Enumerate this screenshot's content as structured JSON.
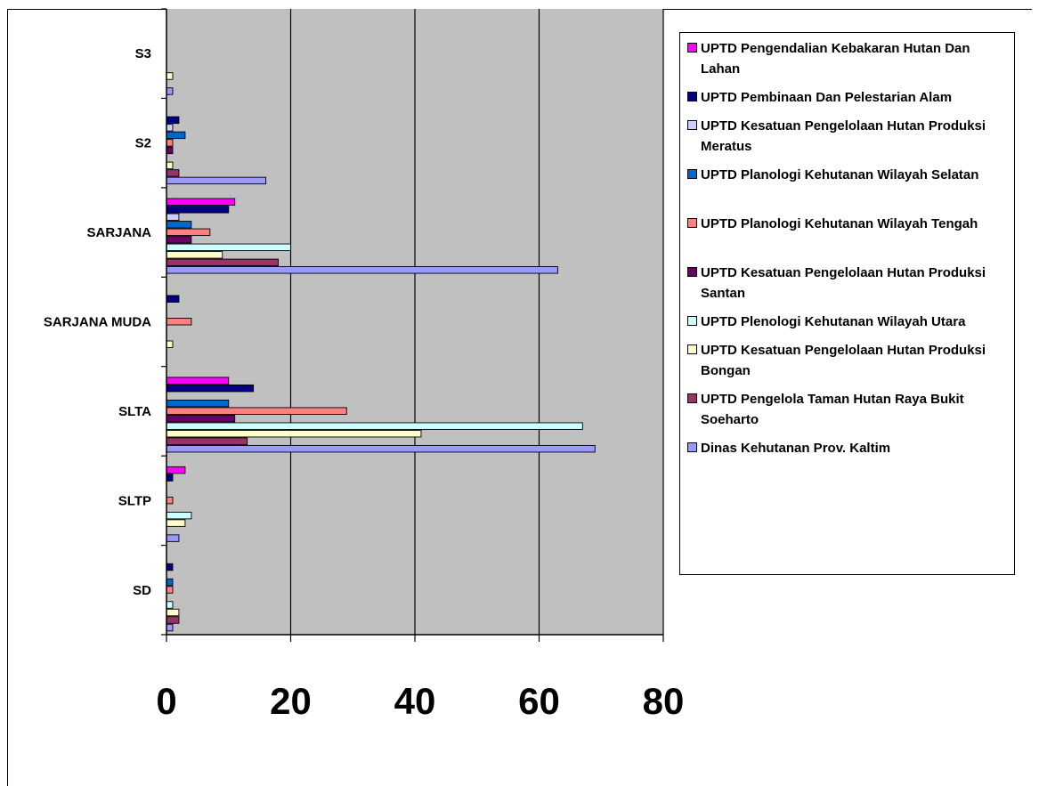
{
  "chart_data": {
    "type": "bar",
    "orientation": "horizontal",
    "categories": [
      "SD",
      "SLTP",
      "SLTA",
      "SARJANA MUDA",
      "SARJANA",
      "S2",
      "S3"
    ],
    "xlim": [
      0,
      80
    ],
    "xticks": [
      "0",
      "20",
      "40",
      "60",
      "80"
    ],
    "grid": true,
    "legend_position": "right",
    "series": [
      {
        "name": "UPTD Pengendalian Kebakaran Hutan Dan Lahan",
        "color": "#ff00ff",
        "values": [
          0,
          3,
          10,
          0,
          11,
          0,
          0
        ]
      },
      {
        "name": "UPTD Pembinaan Dan Pelestarian Alam",
        "color": "#000080",
        "values": [
          1,
          1,
          14,
          2,
          10,
          2,
          0
        ]
      },
      {
        "name": "UPTD Kesatuan Pengelolaan Hutan Produksi Meratus",
        "color": "#ccccff",
        "values": [
          0,
          0,
          0,
          0,
          2,
          1,
          0
        ]
      },
      {
        "name": "UPTD Planologi Kehutanan Wilayah Selatan",
        "color": "#0066cc",
        "values": [
          1,
          0,
          10,
          0,
          4,
          3,
          0
        ]
      },
      {
        "name": "UPTD Planologi Kehutanan Wilayah Tengah",
        "color": "#ff8080",
        "values": [
          1,
          1,
          29,
          4,
          7,
          1,
          0
        ]
      },
      {
        "name": "UPTD Kesatuan Pengelolaan Hutan Produksi Santan",
        "color": "#660066",
        "values": [
          0,
          0,
          11,
          0,
          4,
          1,
          0
        ]
      },
      {
        "name": "UPTD Plenologi Kehutanan Wilayah Utara",
        "color": "#ccffff",
        "values": [
          1,
          4,
          67,
          0,
          20,
          0,
          0
        ]
      },
      {
        "name": "UPTD Kesatuan Pengelolaan Hutan Produksi Bongan",
        "color": "#ffffcc",
        "values": [
          2,
          3,
          41,
          1,
          9,
          1,
          1
        ]
      },
      {
        "name": "UPTD Pengelola Taman Hutan Raya Bukit Soeharto",
        "color": "#993366",
        "values": [
          2,
          0,
          13,
          0,
          18,
          2,
          0
        ]
      },
      {
        "name": "Dinas Kehutanan Prov. Kaltim",
        "color": "#9999ff",
        "values": [
          1,
          2,
          69,
          0,
          63,
          16,
          1
        ]
      }
    ]
  }
}
